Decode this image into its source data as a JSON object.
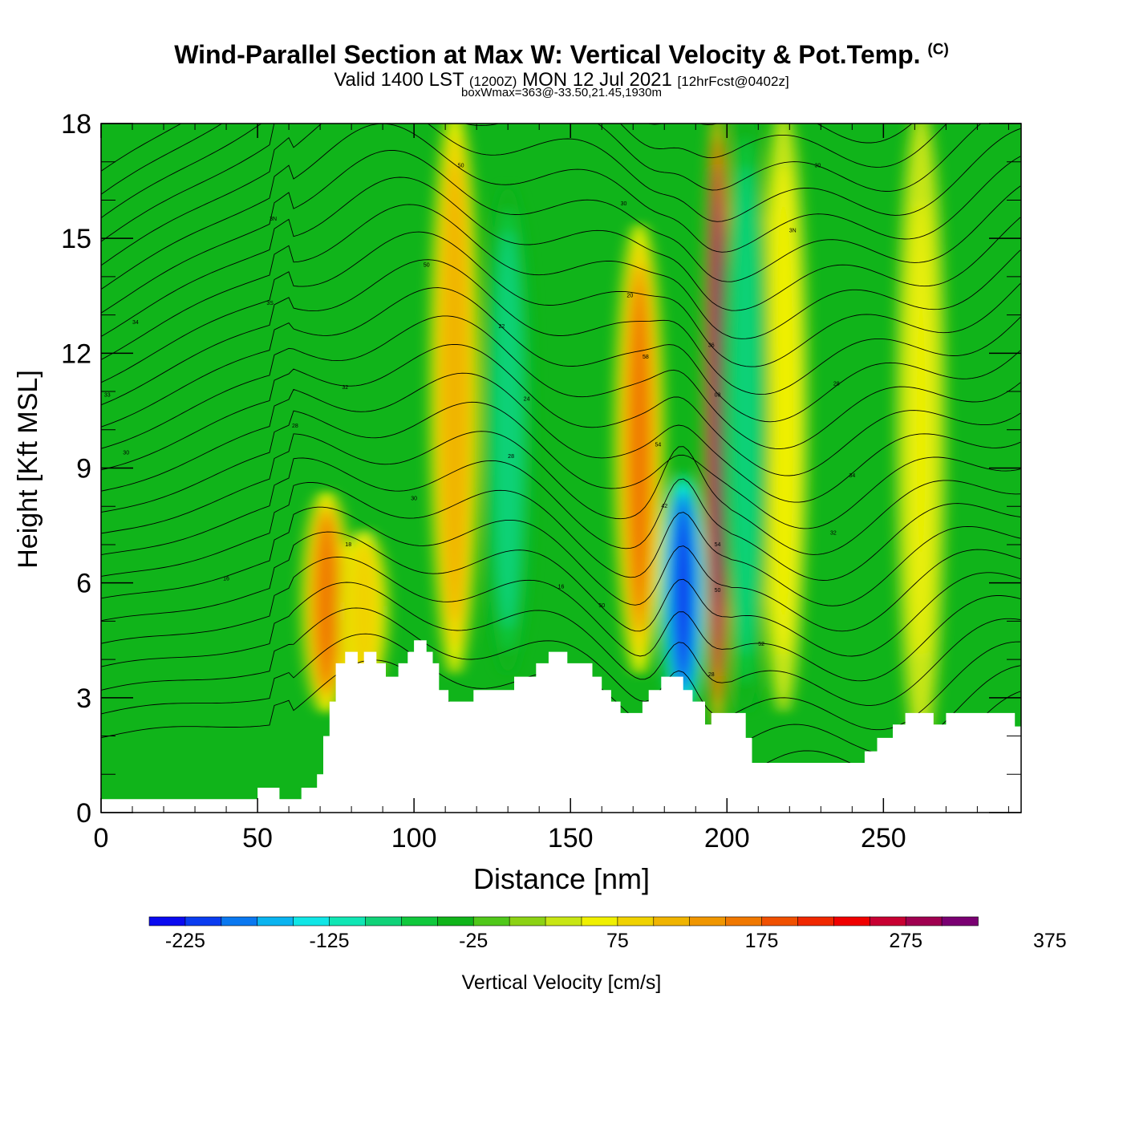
{
  "header": {
    "title": "Wind-Parallel Section at Max W: Vertical Velocity & Pot.Temp.",
    "copyright": "(C)",
    "valid_main_1": "Valid 1400 LST",
    "valid_zulu": "(1200Z)",
    "valid_main_2": "MON 12 Jul 2021",
    "forecast": "[12hrFcst@0402z]",
    "box_wmax": "boxWmax=363@-33.50,21.45,1930m"
  },
  "colors": {
    "background_green": "#10b41a",
    "terrain": "#ffffff",
    "contour": "#000000",
    "max_updraft": "#e00000",
    "max_downdraft": "#0a30f0"
  },
  "chart_data": {
    "type": "heatmap",
    "title": "Wind-Parallel Section at Max W: Vertical Velocity & Pot.Temp.",
    "xlabel": "Distance [nm]",
    "ylabel": "Height [Kft MSL]",
    "xlim": [
      0,
      294
    ],
    "ylim": [
      0,
      18
    ],
    "x_ticks": [
      0,
      50,
      100,
      150,
      200,
      250
    ],
    "y_ticks": [
      0,
      3,
      6,
      9,
      12,
      15,
      18
    ],
    "colorbar": {
      "label": "Vertical Velocity [cm/s]",
      "min": -250,
      "step": 25,
      "tick_labels": [
        "-225",
        "-125",
        "-25",
        "75",
        "175",
        "275",
        "375"
      ],
      "tick_values": [
        -225,
        -125,
        -25,
        75,
        175,
        275,
        375
      ],
      "colors": [
        "#0a0af0",
        "#0a3cf0",
        "#0a78f0",
        "#0ab4f0",
        "#10e6e6",
        "#10e6b4",
        "#10d278",
        "#10c83c",
        "#10b41a",
        "#50c81a",
        "#8cd214",
        "#c8e614",
        "#f0f000",
        "#f0d200",
        "#f0b400",
        "#f09600",
        "#f07800",
        "#f05000",
        "#f02800",
        "#f00000",
        "#c80032",
        "#a00050",
        "#7a0072"
      ]
    },
    "wind_features": [
      {
        "type": "updraft",
        "x": 72,
        "y_range": [
          3,
          8
        ],
        "value": 160
      },
      {
        "type": "updraft",
        "x": 84,
        "y_range": [
          3.5,
          7
        ],
        "value": 90
      },
      {
        "type": "updraft",
        "x": 113,
        "y_range": [
          4,
          18
        ],
        "value": 120
      },
      {
        "type": "updraft",
        "x": 172,
        "y_range": [
          4,
          15
        ],
        "value": 160
      },
      {
        "type": "updraft",
        "x": 197,
        "y_range": [
          2.5,
          18
        ],
        "value": 340
      },
      {
        "type": "updraft",
        "x": 218,
        "y_range": [
          3,
          18
        ],
        "value": 60
      },
      {
        "type": "updraft",
        "x": 262,
        "y_range": [
          2,
          18
        ],
        "value": 55
      },
      {
        "type": "downdraft",
        "x": 186,
        "y_range": [
          3,
          8.5
        ],
        "value": -215
      },
      {
        "type": "downdraft",
        "x": 130,
        "y_range": [
          4,
          16
        ],
        "value": -90
      },
      {
        "type": "downdraft",
        "x": 206,
        "y_range": [
          3,
          18
        ],
        "value": -100
      }
    ],
    "terrain_height": [
      {
        "x": 0,
        "y": 0.35
      },
      {
        "x": 50,
        "y": 0.35
      },
      {
        "x": 50,
        "y": 0.65
      },
      {
        "x": 57,
        "y": 0.65
      },
      {
        "x": 57,
        "y": 0.35
      },
      {
        "x": 64,
        "y": 0.35
      },
      {
        "x": 64,
        "y": 0.65
      },
      {
        "x": 69,
        "y": 0.65
      },
      {
        "x": 69,
        "y": 1.0
      },
      {
        "x": 71,
        "y": 1.0
      },
      {
        "x": 71,
        "y": 2.0
      },
      {
        "x": 73,
        "y": 2.0
      },
      {
        "x": 73,
        "y": 2.9
      },
      {
        "x": 75,
        "y": 2.9
      },
      {
        "x": 75,
        "y": 3.9
      },
      {
        "x": 78,
        "y": 3.9
      },
      {
        "x": 78,
        "y": 4.2
      },
      {
        "x": 82,
        "y": 4.2
      },
      {
        "x": 82,
        "y": 3.9
      },
      {
        "x": 84,
        "y": 3.9
      },
      {
        "x": 84,
        "y": 4.2
      },
      {
        "x": 88,
        "y": 4.2
      },
      {
        "x": 88,
        "y": 3.9
      },
      {
        "x": 91,
        "y": 3.9
      },
      {
        "x": 91,
        "y": 3.55
      },
      {
        "x": 95,
        "y": 3.55
      },
      {
        "x": 95,
        "y": 3.9
      },
      {
        "x": 98,
        "y": 3.9
      },
      {
        "x": 98,
        "y": 4.2
      },
      {
        "x": 100,
        "y": 4.2
      },
      {
        "x": 100,
        "y": 4.5
      },
      {
        "x": 104,
        "y": 4.5
      },
      {
        "x": 104,
        "y": 4.2
      },
      {
        "x": 106,
        "y": 4.2
      },
      {
        "x": 106,
        "y": 3.9
      },
      {
        "x": 108,
        "y": 3.9
      },
      {
        "x": 108,
        "y": 3.2
      },
      {
        "x": 111,
        "y": 3.2
      },
      {
        "x": 111,
        "y": 2.9
      },
      {
        "x": 119,
        "y": 2.9
      },
      {
        "x": 119,
        "y": 3.2
      },
      {
        "x": 132,
        "y": 3.2
      },
      {
        "x": 132,
        "y": 3.55
      },
      {
        "x": 139,
        "y": 3.55
      },
      {
        "x": 139,
        "y": 3.9
      },
      {
        "x": 143,
        "y": 3.9
      },
      {
        "x": 143,
        "y": 4.2
      },
      {
        "x": 149,
        "y": 4.2
      },
      {
        "x": 149,
        "y": 3.9
      },
      {
        "x": 157,
        "y": 3.9
      },
      {
        "x": 157,
        "y": 3.55
      },
      {
        "x": 160,
        "y": 3.55
      },
      {
        "x": 160,
        "y": 3.2
      },
      {
        "x": 163,
        "y": 3.2
      },
      {
        "x": 163,
        "y": 2.9
      },
      {
        "x": 166,
        "y": 2.9
      },
      {
        "x": 166,
        "y": 2.6
      },
      {
        "x": 173,
        "y": 2.6
      },
      {
        "x": 173,
        "y": 2.9
      },
      {
        "x": 175,
        "y": 2.9
      },
      {
        "x": 175,
        "y": 3.2
      },
      {
        "x": 179,
        "y": 3.2
      },
      {
        "x": 179,
        "y": 3.55
      },
      {
        "x": 186,
        "y": 3.55
      },
      {
        "x": 186,
        "y": 3.2
      },
      {
        "x": 189,
        "y": 3.2
      },
      {
        "x": 189,
        "y": 2.9
      },
      {
        "x": 193,
        "y": 2.9
      },
      {
        "x": 193,
        "y": 2.3
      },
      {
        "x": 195,
        "y": 2.3
      },
      {
        "x": 195,
        "y": 2.6
      },
      {
        "x": 206,
        "y": 2.6
      },
      {
        "x": 206,
        "y": 1.95
      },
      {
        "x": 208,
        "y": 1.95
      },
      {
        "x": 208,
        "y": 1.3
      },
      {
        "x": 244,
        "y": 1.3
      },
      {
        "x": 244,
        "y": 1.6
      },
      {
        "x": 248,
        "y": 1.6
      },
      {
        "x": 248,
        "y": 1.95
      },
      {
        "x": 253,
        "y": 1.95
      },
      {
        "x": 253,
        "y": 2.3
      },
      {
        "x": 257,
        "y": 2.3
      },
      {
        "x": 257,
        "y": 2.6
      },
      {
        "x": 266,
        "y": 2.6
      },
      {
        "x": 266,
        "y": 2.3
      },
      {
        "x": 270,
        "y": 2.3
      },
      {
        "x": 270,
        "y": 2.6
      },
      {
        "x": 292,
        "y": 2.6
      },
      {
        "x": 292,
        "y": 2.25
      },
      {
        "x": 294,
        "y": 2.25
      }
    ],
    "contour_labels": [
      {
        "x": 55,
        "y": 15.5,
        "text": "3N"
      },
      {
        "x": 54,
        "y": 13.3,
        "text": "3S"
      },
      {
        "x": 11,
        "y": 12.8,
        "text": "34"
      },
      {
        "x": 2,
        "y": 10.9,
        "text": "33"
      },
      {
        "x": 78,
        "y": 11.1,
        "text": "32"
      },
      {
        "x": 62,
        "y": 10.1,
        "text": "28"
      },
      {
        "x": 8,
        "y": 9.4,
        "text": "30"
      },
      {
        "x": 40,
        "y": 6.1,
        "text": "16"
      },
      {
        "x": 79,
        "y": 7.0,
        "text": "18"
      },
      {
        "x": 100,
        "y": 8.2,
        "text": "30"
      },
      {
        "x": 104,
        "y": 14.3,
        "text": "50"
      },
      {
        "x": 115,
        "y": 16.9,
        "text": "50"
      },
      {
        "x": 128,
        "y": 12.7,
        "text": "22"
      },
      {
        "x": 131,
        "y": 9.3,
        "text": "28"
      },
      {
        "x": 136,
        "y": 10.8,
        "text": "24"
      },
      {
        "x": 147,
        "y": 5.9,
        "text": "16"
      },
      {
        "x": 160,
        "y": 5.4,
        "text": "50"
      },
      {
        "x": 167,
        "y": 15.9,
        "text": "30"
      },
      {
        "x": 169,
        "y": 13.5,
        "text": "20"
      },
      {
        "x": 174,
        "y": 11.9,
        "text": "58"
      },
      {
        "x": 178,
        "y": 9.6,
        "text": "54"
      },
      {
        "x": 180,
        "y": 8.0,
        "text": "42"
      },
      {
        "x": 195,
        "y": 12.2,
        "text": "36"
      },
      {
        "x": 197,
        "y": 10.9,
        "text": "08"
      },
      {
        "x": 197,
        "y": 7.0,
        "text": "54"
      },
      {
        "x": 197,
        "y": 5.8,
        "text": "50"
      },
      {
        "x": 195,
        "y": 3.6,
        "text": "28"
      },
      {
        "x": 211,
        "y": 4.4,
        "text": "52"
      },
      {
        "x": 221,
        "y": 15.2,
        "text": "3N"
      },
      {
        "x": 229,
        "y": 16.9,
        "text": "30"
      },
      {
        "x": 235,
        "y": 11.2,
        "text": "28"
      },
      {
        "x": 240,
        "y": 8.8,
        "text": "34"
      },
      {
        "x": 234,
        "y": 7.3,
        "text": "32"
      }
    ]
  }
}
